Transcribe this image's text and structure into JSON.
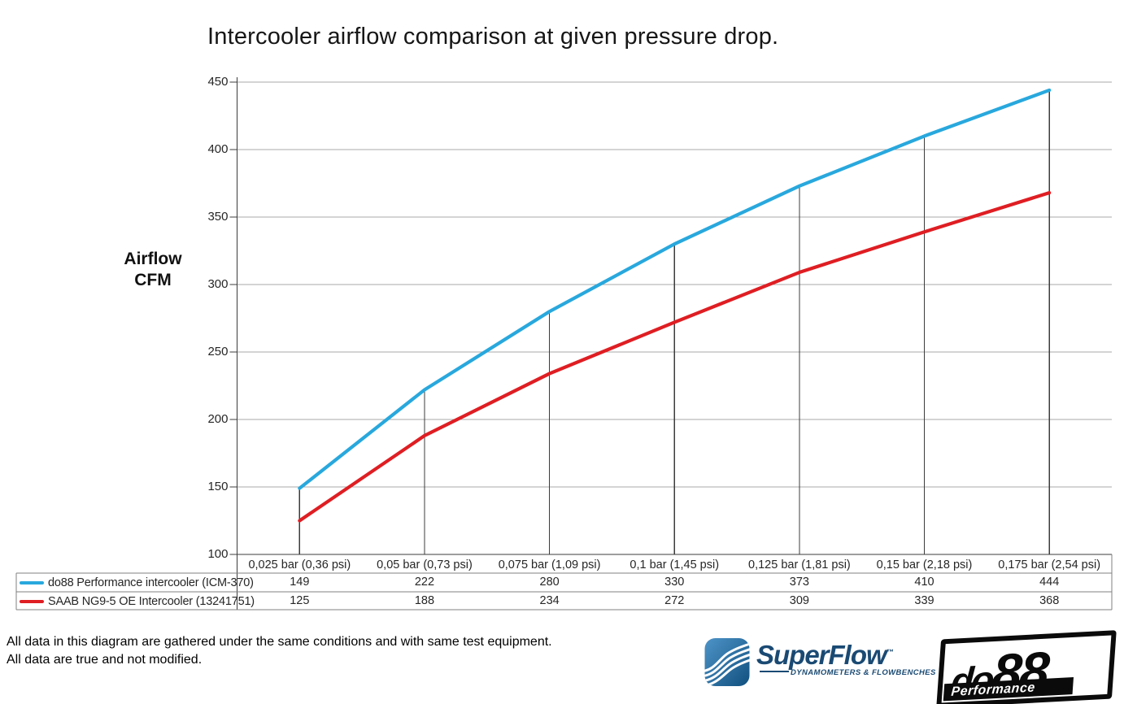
{
  "title": "Intercooler airflow comparison at given pressure drop.",
  "y_axis": {
    "label_line1": "Airflow",
    "label_line2": "CFM"
  },
  "chart_data": {
    "type": "line",
    "title": "Intercooler airflow comparison at given pressure drop.",
    "ylabel": "Airflow CFM",
    "xlabel": "",
    "ylim": [
      100,
      450
    ],
    "y_tick_step": 50,
    "y_ticks": [
      100,
      150,
      200,
      250,
      300,
      350,
      400,
      450
    ],
    "grid": "horizontal gridlines on, vertical drop lines at each data point",
    "legend_position": "bottom table with per-category values",
    "categories": [
      "0,025 bar (0,36 psi)",
      "0,05 bar (0,73 psi)",
      "0,075 bar (1,09 psi)",
      "0,1 bar (1,45 psi)",
      "0,125 bar (1,81 psi)",
      "0,15 bar (2,18 psi)",
      "0,175 bar (2,54 psi)"
    ],
    "series": [
      {
        "name": "do88 Performance intercooler (ICM-370)",
        "color": "#28A8DD",
        "values": [
          149,
          222,
          280,
          330,
          373,
          410,
          444
        ]
      },
      {
        "name": "SAAB NG9-5 OE Intercooler (13241751)",
        "color": "#DF1E23",
        "values": [
          125,
          188,
          234,
          272,
          309,
          339,
          368
        ]
      }
    ]
  },
  "footer": {
    "line1": "All data in this diagram are gathered under the same conditions and with same test equipment.",
    "line2": "All data are true and not modified."
  },
  "logos": {
    "superflow": {
      "wordmark": "SuperFlow",
      "trademark": "™",
      "tagline": "DYNAMOMETERS & FLOWBENCHES",
      "brand_color": "#1A4A73"
    },
    "do88": {
      "wordmark_small": "do",
      "wordmark_large": "88",
      "tagline": "Performance"
    }
  },
  "colors": {
    "gridline": "#A9A9A9",
    "axis": "#3C3C3C",
    "table_border": "#808080",
    "text": "#262626"
  }
}
